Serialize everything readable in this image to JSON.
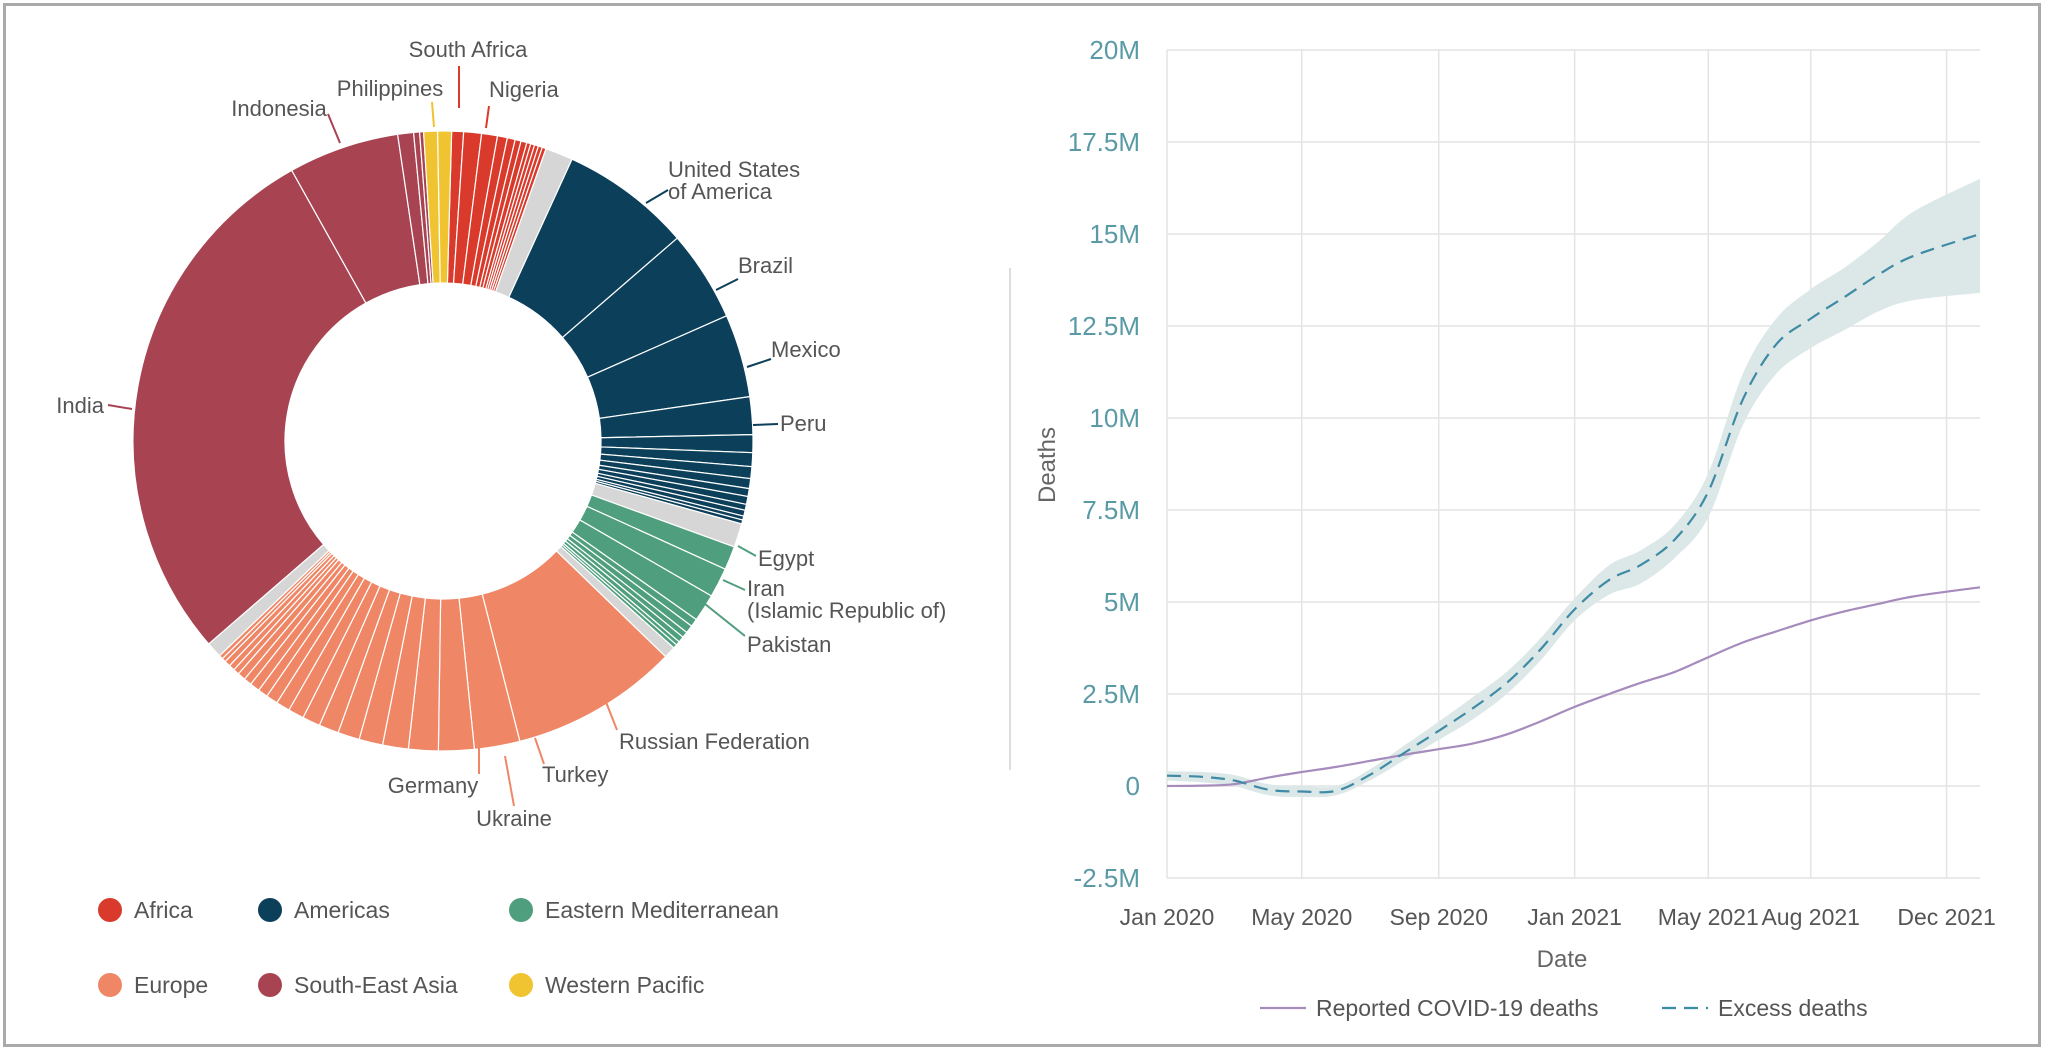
{
  "chart_data": [
    {
      "type": "pie",
      "variant": "donut",
      "legend": {
        "placement": "bottom-left",
        "entries": [
          {
            "name": "Africa",
            "color": "#d93a2b"
          },
          {
            "name": "Americas",
            "color": "#0b3f5a"
          },
          {
            "name": "Eastern Mediterranean",
            "color": "#4f9e7d"
          },
          {
            "name": "Europe",
            "color": "#ef8766"
          },
          {
            "name": "South-East Asia",
            "color": "#a84352"
          },
          {
            "name": "Western Pacific",
            "color": "#f0c330"
          }
        ]
      },
      "slice_labels": [
        {
          "text": "South Africa",
          "region": "Africa"
        },
        {
          "text": "Nigeria",
          "region": "Africa"
        },
        {
          "text": "United States of America",
          "lines": [
            "United States",
            "of America"
          ],
          "region": "Americas"
        },
        {
          "text": "Brazil",
          "region": "Americas"
        },
        {
          "text": "Mexico",
          "region": "Americas"
        },
        {
          "text": "Peru",
          "region": "Americas"
        },
        {
          "text": "Egypt",
          "region": "Eastern Mediterranean"
        },
        {
          "text": "Iran (Islamic Republic of)",
          "lines": [
            "Iran",
            "(Islamic Republic of)"
          ],
          "region": "Eastern Mediterranean"
        },
        {
          "text": "Pakistan",
          "region": "Eastern Mediterranean"
        },
        {
          "text": "Russian Federation",
          "region": "Europe"
        },
        {
          "text": "Turkey",
          "region": "Europe"
        },
        {
          "text": "Ukraine",
          "region": "Europe"
        },
        {
          "text": "Germany",
          "region": "Europe"
        },
        {
          "text": "India",
          "region": "South-East Asia"
        },
        {
          "text": "Indonesia",
          "region": "South-East Asia"
        },
        {
          "text": "Philippines",
          "region": "Western Pacific"
        }
      ],
      "slices": [
        {
          "region": "Africa",
          "share": 0.6
        },
        {
          "region": "Africa",
          "share": 0.9
        },
        {
          "region": "Africa",
          "share": 0.8
        },
        {
          "region": "Africa",
          "share": 0.5
        },
        {
          "region": "Africa",
          "share": 0.4
        },
        {
          "region": "Africa",
          "share": 0.3
        },
        {
          "region": "Africa",
          "share": 0.3
        },
        {
          "region": "Africa",
          "share": 0.2
        },
        {
          "region": "Africa",
          "share": 0.2
        },
        {
          "region": "Africa",
          "share": 0.2
        },
        {
          "region": "Africa",
          "share": 0.2
        },
        {
          "region": "Africa",
          "share": 0.2
        },
        {
          "region": "Other",
          "share": 1.4
        },
        {
          "region": "Americas",
          "share": 6.6
        },
        {
          "region": "Americas",
          "share": 4.6
        },
        {
          "region": "Americas",
          "share": 4.2
        },
        {
          "region": "Americas",
          "share": 1.9
        },
        {
          "region": "Americas",
          "share": 0.9
        },
        {
          "region": "Americas",
          "share": 0.7
        },
        {
          "region": "Americas",
          "share": 0.6
        },
        {
          "region": "Americas",
          "share": 0.5
        },
        {
          "region": "Americas",
          "share": 0.4
        },
        {
          "region": "Americas",
          "share": 0.4
        },
        {
          "region": "Americas",
          "share": 0.3
        },
        {
          "region": "Americas",
          "share": 0.3
        },
        {
          "region": "Americas",
          "share": 0.2
        },
        {
          "region": "Americas",
          "share": 0.2
        },
        {
          "region": "Other",
          "share": 1.2
        },
        {
          "region": "Eastern Mediterranean",
          "share": 1.2
        },
        {
          "region": "Eastern Mediterranean",
          "share": 1.5
        },
        {
          "region": "Eastern Mediterranean",
          "share": 1.4
        },
        {
          "region": "Eastern Mediterranean",
          "share": 0.4
        },
        {
          "region": "Eastern Mediterranean",
          "share": 0.4
        },
        {
          "region": "Eastern Mediterranean",
          "share": 0.3
        },
        {
          "region": "Eastern Mediterranean",
          "share": 0.3
        },
        {
          "region": "Eastern Mediterranean",
          "share": 0.2
        },
        {
          "region": "Eastern Mediterranean",
          "share": 0.2
        },
        {
          "region": "Other",
          "share": 0.6
        },
        {
          "region": "Europe",
          "share": 8.5
        },
        {
          "region": "Europe",
          "share": 2.3
        },
        {
          "region": "Europe",
          "share": 1.8
        },
        {
          "region": "Europe",
          "share": 1.5
        },
        {
          "region": "Europe",
          "share": 1.3
        },
        {
          "region": "Europe",
          "share": 1.2
        },
        {
          "region": "Europe",
          "share": 1.1
        },
        {
          "region": "Europe",
          "share": 1.0
        },
        {
          "region": "Europe",
          "share": 0.9
        },
        {
          "region": "Europe",
          "share": 0.8
        },
        {
          "region": "Europe",
          "share": 0.7
        },
        {
          "region": "Europe",
          "share": 0.6
        },
        {
          "region": "Europe",
          "share": 0.5
        },
        {
          "region": "Europe",
          "share": 0.5
        },
        {
          "region": "Europe",
          "share": 0.4
        },
        {
          "region": "Europe",
          "share": 0.4
        },
        {
          "region": "Europe",
          "share": 0.3
        },
        {
          "region": "Europe",
          "share": 0.3
        },
        {
          "region": "Europe",
          "share": 0.3
        },
        {
          "region": "Europe",
          "share": 0.2
        },
        {
          "region": "Europe",
          "share": 0.2
        },
        {
          "region": "Other",
          "share": 0.8
        },
        {
          "region": "South-East Asia",
          "share": 27.4
        },
        {
          "region": "South-East Asia",
          "share": 5.6
        },
        {
          "region": "South-East Asia",
          "share": 0.8
        },
        {
          "region": "South-East Asia",
          "share": 0.3
        },
        {
          "region": "South-East Asia",
          "share": 0.2
        },
        {
          "region": "Western Pacific",
          "share": 0.7
        },
        {
          "region": "Western Pacific",
          "share": 0.7
        }
      ]
    },
    {
      "type": "line",
      "xlabel": "Date",
      "ylabel": "Deaths",
      "x_ticks": [
        "Jan 2020",
        "May 2020",
        "Sep 2020",
        "Jan 2021",
        "May 2021",
        "Aug 2021",
        "Dec 2021"
      ],
      "y_ticks": [
        "-2.5M",
        "0",
        "2.5M",
        "5M",
        "7.5M",
        "10M",
        "12.5M",
        "15M",
        "17.5M",
        "20M"
      ],
      "ylim": [
        -2500000,
        20000000
      ],
      "xlim": [
        "2020-01-01",
        "2021-12-31"
      ],
      "grid": true,
      "legend": {
        "placement": "bottom"
      },
      "series": [
        {
          "name": "Reported COVID-19 deaths",
          "style": "solid",
          "color": "#a68bbd",
          "x": [
            "2020-01-01",
            "2020-02-01",
            "2020-03-01",
            "2020-04-01",
            "2020-05-01",
            "2020-06-01",
            "2020-07-01",
            "2020-08-01",
            "2020-09-01",
            "2020-10-01",
            "2020-11-01",
            "2020-12-01",
            "2021-01-01",
            "2021-02-01",
            "2021-03-01",
            "2021-04-01",
            "2021-05-01",
            "2021-06-01",
            "2021-07-01",
            "2021-08-01",
            "2021-09-01",
            "2021-10-01",
            "2021-11-01",
            "2021-12-31"
          ],
          "y": [
            0,
            10000,
            50000,
            230000,
            380000,
            520000,
            680000,
            850000,
            1000000,
            1150000,
            1400000,
            1750000,
            2150000,
            2500000,
            2800000,
            3100000,
            3500000,
            3900000,
            4200000,
            4500000,
            4750000,
            4950000,
            5150000,
            5400000
          ]
        },
        {
          "name": "Excess deaths",
          "style": "dashed",
          "color": "#3f8aa5",
          "band_color": "#dbe8e7",
          "x": [
            "2020-01-01",
            "2020-02-01",
            "2020-03-01",
            "2020-04-01",
            "2020-05-01",
            "2020-06-01",
            "2020-07-01",
            "2020-08-01",
            "2020-09-01",
            "2020-10-01",
            "2020-11-01",
            "2020-12-01",
            "2021-01-01",
            "2021-02-01",
            "2021-03-01",
            "2021-04-01",
            "2021-05-01",
            "2021-06-01",
            "2021-07-01",
            "2021-08-01",
            "2021-09-01",
            "2021-10-01",
            "2021-11-01",
            "2021-12-31"
          ],
          "y": [
            280000,
            250000,
            150000,
            -100000,
            -150000,
            -130000,
            300000,
            900000,
            1500000,
            2100000,
            2800000,
            3700000,
            4800000,
            5600000,
            6000000,
            6700000,
            8000000,
            10500000,
            12000000,
            12700000,
            13300000,
            13900000,
            14400000,
            15000000
          ],
          "lower": [
            150000,
            100000,
            0,
            -250000,
            -300000,
            -250000,
            150000,
            700000,
            1250000,
            1800000,
            2500000,
            3400000,
            4500000,
            5200000,
            5500000,
            6200000,
            7300000,
            9800000,
            11200000,
            11900000,
            12400000,
            12900000,
            13200000,
            13400000
          ],
          "upper": [
            400000,
            380000,
            300000,
            50000,
            0,
            0,
            450000,
            1100000,
            1750000,
            2400000,
            3100000,
            4000000,
            5100000,
            6000000,
            6400000,
            7100000,
            8500000,
            11200000,
            12700000,
            13500000,
            14100000,
            14800000,
            15600000,
            16500000
          ]
        }
      ]
    }
  ]
}
